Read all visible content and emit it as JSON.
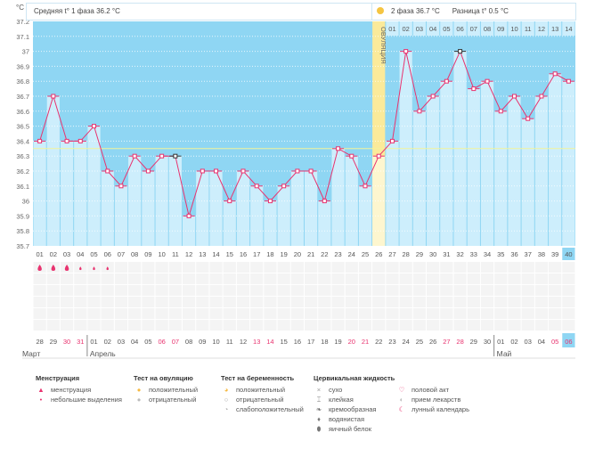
{
  "header": {
    "phase1": "Средняя t° 1 фаза 36.2 °C",
    "phase2": "2 фаза 36.7 °C",
    "diff": "Разница t° 0.5 °C",
    "unit": "°C",
    "ovulation_label": "ОВУЛЯЦИЯ"
  },
  "chart_data": {
    "type": "bar",
    "title": "",
    "ylabel": "°C",
    "ylim": [
      35.7,
      37.2
    ],
    "yticks": [
      "37.2",
      "37.1",
      "37",
      "36.9",
      "36.8",
      "36.7",
      "36.6",
      "36.5",
      "36.4",
      "36.3",
      "36.2",
      "36.1",
      "36",
      "35.9",
      "35.8",
      "35.7"
    ],
    "cycle_days": [
      "01",
      "02",
      "03",
      "04",
      "05",
      "06",
      "07",
      "08",
      "09",
      "10",
      "11",
      "12",
      "13",
      "14",
      "15",
      "16",
      "17",
      "18",
      "19",
      "20",
      "21",
      "22",
      "23",
      "24",
      "25",
      "26",
      "27",
      "28",
      "29",
      "30",
      "31",
      "32",
      "33",
      "34",
      "35",
      "36",
      "37",
      "38",
      "39",
      "40"
    ],
    "temperatures": [
      36.4,
      36.7,
      36.4,
      36.4,
      36.5,
      36.2,
      36.1,
      36.3,
      36.2,
      36.3,
      36.3,
      35.9,
      36.2,
      36.2,
      36.0,
      36.2,
      36.1,
      36.0,
      36.1,
      36.2,
      36.2,
      36.0,
      36.35,
      36.3,
      36.1,
      36.3,
      36.4,
      37.0,
      36.6,
      36.7,
      36.8,
      37.0,
      36.75,
      36.8,
      36.6,
      36.7,
      36.55,
      36.7,
      36.85,
      36.8
    ],
    "coverline": 36.35,
    "ovulation_day": 26,
    "current_day": 40,
    "post_ovulation_days": [
      "01",
      "02",
      "03",
      "04",
      "05",
      "06",
      "07",
      "08",
      "09",
      "10",
      "11",
      "12",
      "13",
      "14"
    ],
    "dates": [
      "28",
      "29",
      "30",
      "31",
      "01",
      "02",
      "03",
      "04",
      "05",
      "06",
      "07",
      "08",
      "09",
      "10",
      "11",
      "12",
      "13",
      "14",
      "15",
      "16",
      "17",
      "18",
      "19",
      "20",
      "21",
      "22",
      "23",
      "24",
      "25",
      "26",
      "27",
      "28",
      "29",
      "30",
      "01",
      "02",
      "03",
      "04",
      "05",
      "06"
    ],
    "weekend_idx": [
      2,
      3,
      9,
      10,
      16,
      17,
      23,
      24,
      30,
      31,
      38,
      39
    ],
    "months": [
      {
        "label": "Март",
        "start": 0
      },
      {
        "label": "Апрель",
        "start": 4
      },
      {
        "label": "Май",
        "start": 34
      }
    ],
    "menstruation": [
      "heavy",
      "heavy",
      "heavy",
      "light",
      "light",
      "light"
    ],
    "colors": {
      "bar": "#cdeefc",
      "bg": "#8fd6f3",
      "line": "#e8336f",
      "ovulation": "#fbea9a",
      "coverline": "#f3f39a",
      "weekend": "#e8336f"
    }
  },
  "legend": [
    {
      "title": "Менструация",
      "items": [
        {
          "icon": "drop-heavy",
          "label": "менструация"
        },
        {
          "icon": "drop-small",
          "label": "небольшие выделения"
        }
      ]
    },
    {
      "title": "Тест на овуляцию",
      "items": [
        {
          "icon": "sun-positive",
          "label": "положительный"
        },
        {
          "icon": "sun-negative",
          "label": "отрицательный"
        }
      ]
    },
    {
      "title": "Тест на беременность",
      "items": [
        {
          "icon": "circle-positive",
          "label": "положительный"
        },
        {
          "icon": "circle-negative",
          "label": "отрицательный"
        },
        {
          "icon": "circle-weak",
          "label": "слабоположительный"
        }
      ]
    },
    {
      "title": "Цервикальная жидкость",
      "items": [
        {
          "icon": "cross",
          "label": "сухо"
        },
        {
          "icon": "sticky",
          "label": "клейкая"
        },
        {
          "icon": "creamy",
          "label": "кремообразная"
        },
        {
          "icon": "watery",
          "label": "водянистая"
        },
        {
          "icon": "egg-white",
          "label": "яичный белок"
        }
      ]
    },
    {
      "title": "",
      "items": [
        {
          "icon": "heart",
          "label": "половой акт"
        },
        {
          "icon": "pill",
          "label": "прием лекарств"
        },
        {
          "icon": "moon",
          "label": "лунный календарь"
        }
      ]
    }
  ]
}
